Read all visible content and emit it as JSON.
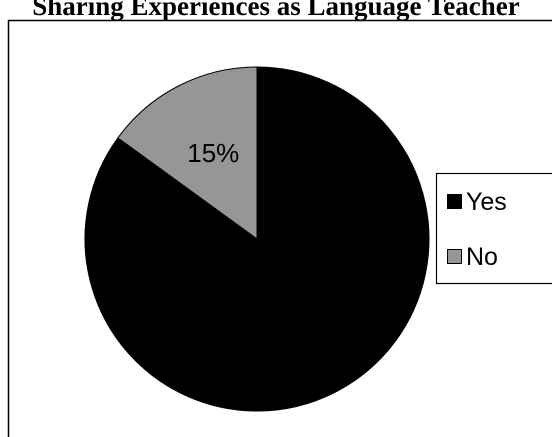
{
  "chart_data": {
    "type": "pie",
    "title": "Sharing Experiences as Language Teacher",
    "categories": [
      "Yes",
      "No"
    ],
    "values": [
      85,
      15
    ],
    "data_labels": [
      "",
      "15%"
    ],
    "legend_placement": "right",
    "colors": [
      "#000000",
      "#969696"
    ],
    "start_angle_deg": -90,
    "direction": "clockwise"
  }
}
